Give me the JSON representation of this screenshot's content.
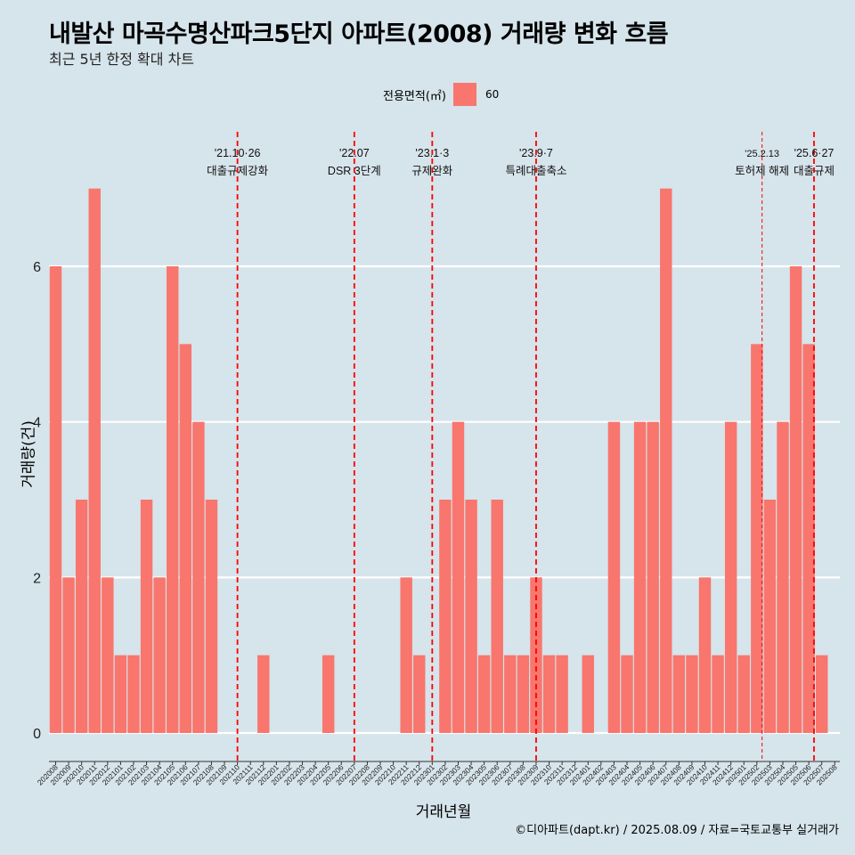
{
  "title": "내발산 마곡수명산파크5단지 아파트(2008) 거래량 변화 흐름",
  "subtitle": "최근 5년 한정 확대 차트",
  "legend": {
    "title": "전용면적(㎡)",
    "label": "60"
  },
  "caption": "©디아파트(dapt.kr) / 2025.08.09 / 자료=국토교통부 실거래가",
  "colors": {
    "bar": "#f8766d",
    "background": "#d6e4eb",
    "grid": "#ffffff",
    "vline": "#ff0000"
  },
  "chart_data": {
    "type": "bar",
    "title": "내발산 마곡수명산파크5단지 아파트(2008) 거래량 변화 흐름",
    "xlabel": "거래년월",
    "ylabel": "거래량(건)",
    "ylim": [
      0,
      7
    ],
    "yticks": [
      0,
      2,
      4,
      6
    ],
    "grid": true,
    "legend_position": "top",
    "categories": [
      "202008",
      "202009",
      "202010",
      "202011",
      "202012",
      "202101",
      "202102",
      "202103",
      "202104",
      "202105",
      "202106",
      "202107",
      "202108",
      "202109",
      "202110",
      "202111",
      "202112",
      "202201",
      "202202",
      "202203",
      "202204",
      "202205",
      "202206",
      "202207",
      "202208",
      "202209",
      "202210",
      "202211",
      "202212",
      "202301",
      "202302",
      "202303",
      "202304",
      "202305",
      "202306",
      "202307",
      "202308",
      "202309",
      "202310",
      "202311",
      "202312",
      "202401",
      "202402",
      "202403",
      "202404",
      "202405",
      "202406",
      "202407",
      "202408",
      "202409",
      "202410",
      "202411",
      "202412",
      "202501",
      "202502",
      "202503",
      "202504",
      "202505",
      "202506",
      "202507",
      "202508"
    ],
    "series": [
      {
        "name": "60",
        "values": [
          6,
          2,
          3,
          7,
          2,
          1,
          1,
          3,
          2,
          6,
          5,
          4,
          3,
          0,
          0,
          0,
          1,
          0,
          0,
          0,
          0,
          1,
          0,
          0,
          0,
          0,
          0,
          2,
          1,
          0,
          3,
          4,
          3,
          1,
          3,
          1,
          1,
          2,
          1,
          1,
          0,
          1,
          0,
          4,
          1,
          4,
          4,
          7,
          1,
          1,
          2,
          1,
          4,
          1,
          5,
          3,
          4,
          6,
          5,
          1,
          0
        ]
      }
    ],
    "annotations": [
      {
        "after": "202110",
        "date": "'21.10·26",
        "label": "대출규제강화",
        "position": 14.0,
        "style": "dashed"
      },
      {
        "after": "202207",
        "date": "'22.07",
        "label": "DSR 3단계",
        "position": 23.0,
        "style": "dashed"
      },
      {
        "after": "202301",
        "date": "'23.1·3",
        "label": "규제완화",
        "position": 29.0,
        "style": "dashed"
      },
      {
        "after": "202309",
        "date": "'23.9·7",
        "label": "특례대출축소",
        "position": 37.0,
        "style": "dashed"
      },
      {
        "after": "202502",
        "date": "'25.2.13",
        "label": "토허제 해제",
        "position": 54.4,
        "style": "thin"
      },
      {
        "after": "202506",
        "date": "'25.6·27",
        "label": "대출규제",
        "position": 58.4,
        "style": "dashed"
      }
    ]
  }
}
